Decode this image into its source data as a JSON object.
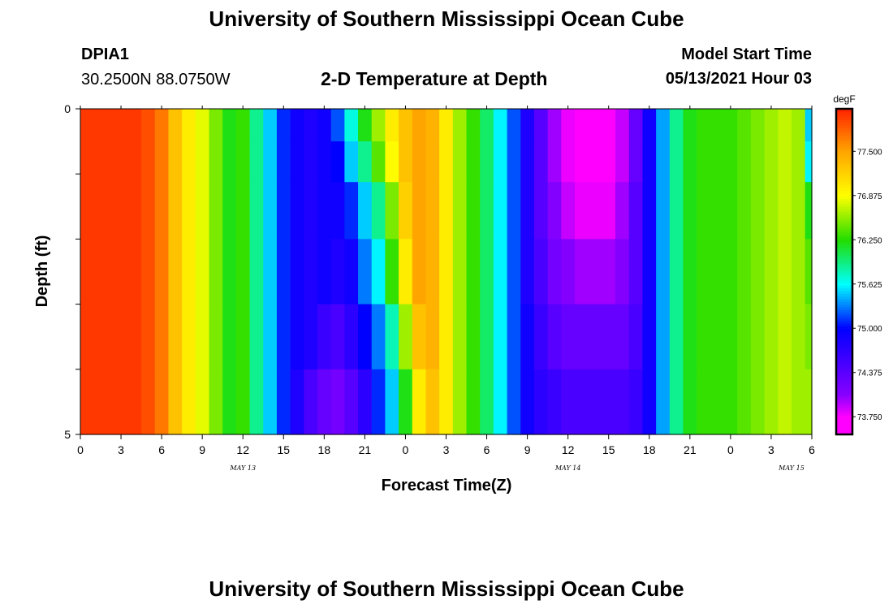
{
  "header": {
    "title": "University of Southern Mississippi Ocean Cube",
    "station_id": "DPIA1",
    "coordinates": "30.2500N  88.0750W",
    "plot_title": "2-D Temperature at Depth",
    "model_start_label": "Model Start Time",
    "model_start_value": "05/13/2021 Hour 03"
  },
  "footer": {
    "title": "University of Southern Mississippi Ocean Cube"
  },
  "colors": {
    "ramp_high": "#ff2200",
    "ramp_orange": "#ffa500",
    "ramp_yellow": "#ffff00",
    "ramp_green": "#22dd00",
    "ramp_cyan": "#00ffff",
    "ramp_blue": "#0000ff",
    "ramp_purple": "#8800ff",
    "ramp_low": "#ff00ff"
  },
  "chart_data": {
    "type": "heatmap",
    "title": "2-D Temperature at Depth",
    "xlabel": "Forecast Time(Z)",
    "ylabel": "Depth (ft)",
    "x_tick_labels": [
      "0",
      "3",
      "6",
      "9",
      "12",
      "15",
      "18",
      "21",
      "0",
      "3",
      "6",
      "9",
      "12",
      "15",
      "18",
      "21",
      "0",
      "3",
      "6"
    ],
    "x_date_labels": [
      "MAY 13",
      "MAY 14",
      "MAY 15"
    ],
    "y_tick_labels": [
      "0",
      "5"
    ],
    "ylim": [
      0,
      5
    ],
    "x_range_hours": [
      0,
      54
    ],
    "colorbar": {
      "unit": "degF",
      "tick_labels": [
        "77.500",
        "76.875",
        "76.250",
        "75.625",
        "75.000",
        "74.375",
        "73.750"
      ],
      "range": [
        73.5,
        78.1
      ]
    },
    "depth_levels_ft": [
      0.25,
      0.75,
      1.5,
      2.5,
      3.5,
      4.5
    ],
    "time_hours": [
      0,
      1,
      2,
      3,
      4,
      5,
      6,
      7,
      8,
      9,
      10,
      11,
      12,
      13,
      14,
      15,
      16,
      17,
      18,
      19,
      20,
      21,
      22,
      23,
      24,
      25,
      26,
      27,
      28,
      29,
      30,
      31,
      32,
      33,
      34,
      35,
      36,
      37,
      38,
      39,
      40,
      41,
      42,
      43,
      44,
      45,
      46,
      47,
      48,
      49,
      50,
      51,
      52,
      53,
      54
    ],
    "values_degF": [
      [
        78.0,
        78.0,
        78.0,
        78.0,
        78.0,
        77.9,
        77.7,
        77.3,
        77.0,
        76.8,
        76.5,
        76.2,
        76.3,
        75.9,
        75.5,
        75.1,
        74.9,
        74.8,
        74.9,
        75.2,
        75.7,
        76.2,
        76.6,
        77.0,
        77.3,
        77.5,
        77.4,
        77.0,
        76.6,
        76.3,
        76.0,
        75.6,
        75.2,
        74.8,
        74.4,
        74.0,
        73.8,
        73.7,
        73.6,
        73.7,
        73.9,
        74.3,
        74.9,
        75.4,
        75.9,
        76.2,
        76.3,
        76.3,
        76.3,
        76.4,
        76.5,
        76.6,
        76.7,
        76.6,
        75.5
      ],
      [
        78.0,
        78.0,
        78.0,
        78.0,
        78.0,
        77.9,
        77.7,
        77.3,
        77.0,
        76.8,
        76.5,
        76.2,
        76.3,
        75.9,
        75.5,
        75.1,
        74.9,
        74.8,
        74.9,
        75.0,
        75.5,
        75.9,
        76.4,
        76.9,
        77.3,
        77.5,
        77.4,
        77.0,
        76.6,
        76.3,
        76.0,
        75.6,
        75.2,
        74.8,
        74.4,
        74.0,
        73.8,
        73.7,
        73.6,
        73.7,
        73.9,
        74.3,
        74.9,
        75.4,
        75.9,
        76.2,
        76.3,
        76.3,
        76.3,
        76.4,
        76.5,
        76.6,
        76.7,
        76.6,
        75.6
      ],
      [
        78.0,
        78.0,
        78.0,
        78.0,
        78.0,
        77.9,
        77.7,
        77.3,
        77.0,
        76.8,
        76.5,
        76.2,
        76.3,
        75.9,
        75.5,
        75.1,
        74.9,
        74.8,
        74.9,
        74.9,
        75.1,
        75.5,
        75.9,
        76.5,
        77.2,
        77.5,
        77.4,
        77.0,
        76.6,
        76.3,
        76.0,
        75.6,
        75.2,
        74.8,
        74.4,
        74.1,
        73.9,
        73.8,
        73.8,
        73.8,
        74.0,
        74.4,
        74.9,
        75.4,
        75.9,
        76.2,
        76.3,
        76.3,
        76.3,
        76.4,
        76.5,
        76.6,
        76.7,
        76.6,
        76.2
      ],
      [
        78.0,
        78.0,
        78.0,
        78.0,
        78.0,
        77.9,
        77.7,
        77.3,
        77.0,
        76.8,
        76.5,
        76.2,
        76.3,
        75.9,
        75.5,
        75.1,
        74.9,
        74.8,
        74.9,
        74.8,
        74.9,
        75.3,
        75.6,
        76.3,
        77.0,
        77.5,
        77.4,
        77.0,
        76.6,
        76.3,
        76.0,
        75.6,
        75.2,
        74.8,
        74.5,
        74.2,
        74.1,
        74.0,
        74.0,
        74.0,
        74.1,
        74.4,
        74.9,
        75.4,
        75.9,
        76.2,
        76.3,
        76.3,
        76.3,
        76.4,
        76.5,
        76.6,
        76.7,
        76.6,
        76.4
      ],
      [
        78.0,
        78.0,
        78.0,
        78.0,
        78.0,
        77.9,
        77.7,
        77.3,
        77.0,
        76.8,
        76.5,
        76.2,
        76.3,
        75.9,
        75.5,
        75.1,
        74.9,
        74.8,
        74.6,
        74.5,
        74.7,
        75.0,
        75.3,
        75.8,
        76.6,
        77.3,
        77.4,
        77.0,
        76.6,
        76.3,
        76.0,
        75.6,
        75.2,
        74.9,
        74.6,
        74.4,
        74.3,
        74.3,
        74.3,
        74.3,
        74.3,
        74.5,
        74.9,
        75.4,
        75.9,
        76.2,
        76.3,
        76.3,
        76.3,
        76.4,
        76.5,
        76.6,
        76.7,
        76.6,
        76.5
      ],
      [
        78.0,
        78.0,
        78.0,
        78.0,
        78.0,
        77.9,
        77.7,
        77.3,
        77.0,
        76.8,
        76.5,
        76.2,
        76.3,
        75.9,
        75.5,
        75.1,
        74.8,
        74.5,
        74.3,
        74.2,
        74.4,
        74.7,
        75.1,
        75.5,
        76.2,
        77.0,
        77.3,
        77.0,
        76.6,
        76.3,
        76.0,
        75.6,
        75.2,
        74.9,
        74.7,
        74.6,
        74.5,
        74.5,
        74.5,
        74.5,
        74.5,
        74.6,
        74.9,
        75.4,
        75.9,
        76.2,
        76.3,
        76.3,
        76.3,
        76.4,
        76.5,
        76.6,
        76.7,
        76.6,
        76.6
      ]
    ]
  }
}
